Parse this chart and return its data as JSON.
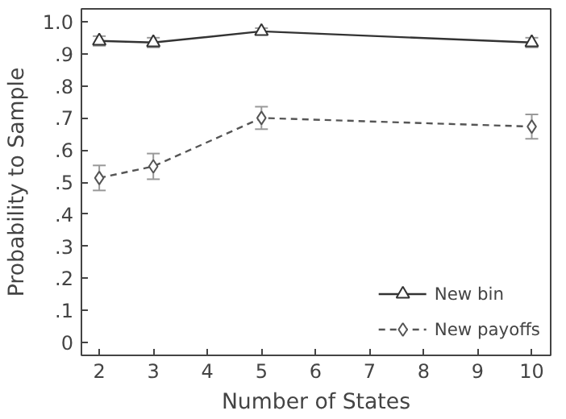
{
  "chart_data": {
    "type": "line",
    "xlabel": "Number of States",
    "ylabel": "Probability to Sample",
    "x": [
      2,
      3,
      5,
      10
    ],
    "series": [
      {
        "name": "New bin",
        "color": "#333333",
        "marker": "triangle",
        "line_style": "solid",
        "values": [
          0.94,
          0.935,
          0.97,
          0.935
        ],
        "errors": [
          0.015,
          0.015,
          0.01,
          0.015
        ]
      },
      {
        "name": "New payoffs",
        "color": "#555555",
        "marker": "diamond",
        "line_style": "dashed",
        "values": [
          0.513,
          0.549,
          0.7,
          0.673
        ],
        "errors": [
          0.039,
          0.04,
          0.035,
          0.038
        ]
      }
    ],
    "xlim": [
      1.67,
      10.35
    ],
    "ylim": [
      -0.04,
      1.04
    ],
    "xticks": [
      2,
      3,
      4,
      5,
      6,
      7,
      8,
      9,
      10
    ],
    "yticks": [
      0,
      {
        "value": 0.1,
        "label": ".1"
      },
      {
        "value": 0.2,
        "label": ".2"
      },
      {
        "value": 0.3,
        "label": ".3"
      },
      {
        "value": 0.4,
        "label": ".4"
      },
      {
        "value": 0.5,
        "label": ".5"
      },
      {
        "value": 0.6,
        "label": ".6"
      },
      {
        "value": 0.7,
        "label": ".7"
      },
      {
        "value": 0.8,
        "label": ".8"
      },
      {
        "value": 0.9,
        "label": ".9"
      },
      {
        "value": 1.0,
        "label": "1.0"
      }
    ],
    "grid": false,
    "legend": "bottom right"
  }
}
